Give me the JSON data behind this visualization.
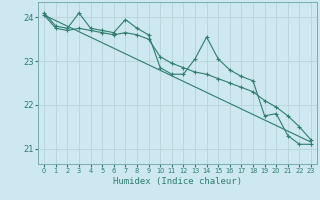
{
  "xlabel": "Humidex (Indice chaleur)",
  "background_color": "#cde8f0",
  "grid_color": "#b8d4d8",
  "line_color": "#2e7d6e",
  "xlim": [
    -0.5,
    23.5
  ],
  "ylim": [
    20.65,
    24.35
  ],
  "yticks": [
    21,
    22,
    23,
    24
  ],
  "xticks": [
    0,
    1,
    2,
    3,
    4,
    5,
    6,
    7,
    8,
    9,
    10,
    11,
    12,
    13,
    14,
    15,
    16,
    17,
    18,
    19,
    20,
    21,
    22,
    23
  ],
  "series1_x": [
    0,
    1,
    2,
    3,
    4,
    5,
    6,
    7,
    8,
    9,
    10,
    11,
    12,
    13,
    14,
    15,
    16,
    17,
    18,
    19,
    20,
    21,
    22,
    23
  ],
  "series1_y": [
    24.1,
    23.8,
    23.75,
    24.1,
    23.75,
    23.7,
    23.65,
    23.95,
    23.75,
    23.6,
    22.85,
    22.7,
    22.7,
    23.05,
    23.55,
    23.05,
    22.8,
    22.65,
    22.55,
    21.75,
    21.8,
    21.3,
    21.1,
    21.1
  ],
  "series2_x": [
    0,
    1,
    2,
    3,
    4,
    5,
    6,
    7,
    8,
    9,
    10,
    11,
    12,
    13,
    14,
    15,
    16,
    17,
    18,
    19,
    20,
    21,
    22,
    23
  ],
  "series2_y": [
    24.05,
    23.75,
    23.7,
    23.75,
    23.7,
    23.65,
    23.6,
    23.65,
    23.6,
    23.5,
    23.1,
    22.95,
    22.85,
    22.75,
    22.7,
    22.6,
    22.5,
    22.4,
    22.3,
    22.1,
    21.95,
    21.75,
    21.5,
    21.2
  ],
  "trend_x": [
    0,
    23
  ],
  "trend_y": [
    24.05,
    21.15
  ]
}
